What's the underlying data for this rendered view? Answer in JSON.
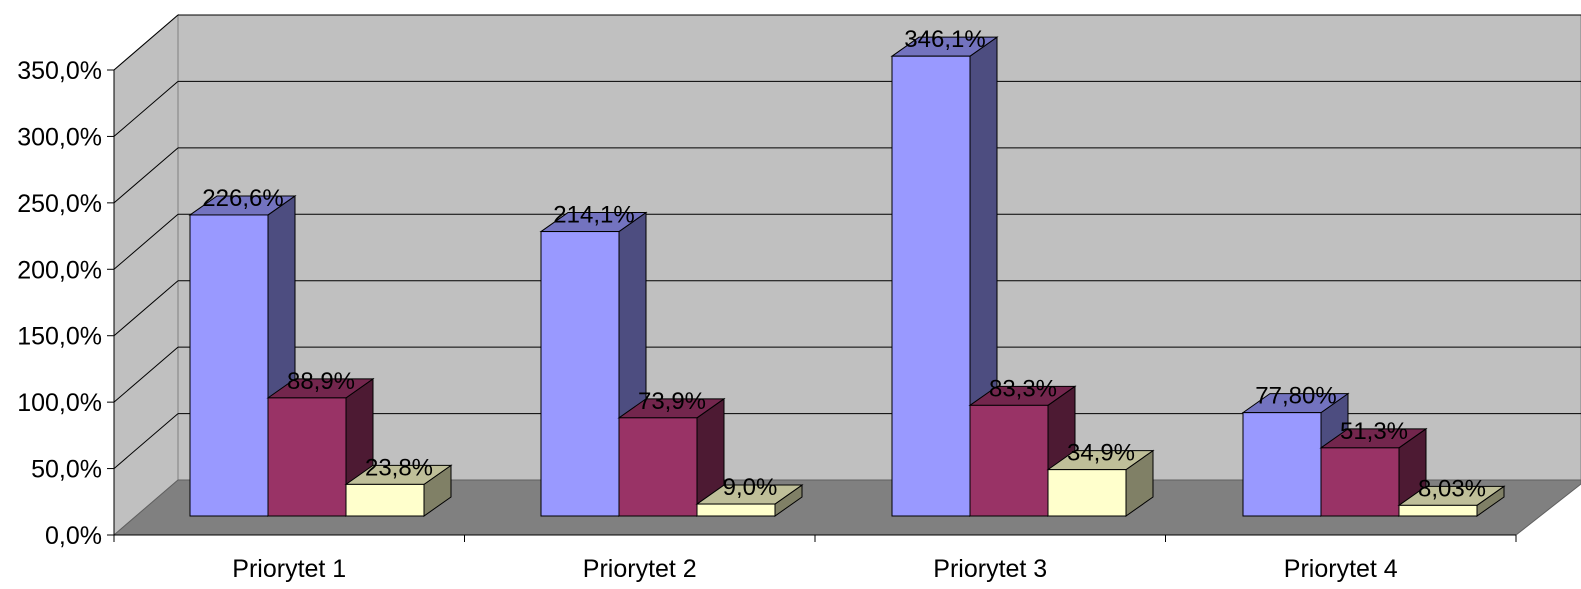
{
  "chart_data": {
    "type": "bar",
    "title": "",
    "xlabel": "",
    "ylabel": "",
    "categories": [
      "Priorytet 1",
      "Priorytet 2",
      "Priorytet 3",
      "Priorytet 4"
    ],
    "series": [
      {
        "color": "#9999ff",
        "values": [
          226.6,
          214.1,
          346.1,
          77.8
        ],
        "labels": [
          "226,6%",
          "214,1%",
          "346,1%",
          "77,80%"
        ]
      },
      {
        "color": "#993366",
        "values": [
          88.9,
          73.9,
          83.3,
          51.3
        ],
        "labels": [
          "88,9%",
          "73,9%",
          "83,3%",
          "51,3%"
        ]
      },
      {
        "color": "#ffffcc",
        "values": [
          23.8,
          9.0,
          34.9,
          8.03
        ],
        "labels": [
          "23,8%",
          "9,0%",
          "34,9%",
          "8,03%"
        ]
      }
    ],
    "ylim": [
      0,
      350
    ],
    "yticks": [
      {
        "value": 0,
        "label": "0,0%"
      },
      {
        "value": 50,
        "label": "50,0%"
      },
      {
        "value": 100,
        "label": "100,0%"
      },
      {
        "value": 150,
        "label": "150,0%"
      },
      {
        "value": 200,
        "label": "200,0%"
      },
      {
        "value": 250,
        "label": "250,0%"
      },
      {
        "value": 300,
        "label": "300,0%"
      },
      {
        "value": 350,
        "label": "350,0%"
      }
    ],
    "grid": true,
    "legend": "none",
    "style": "3d-clustered-column",
    "colors": {
      "wall": "#c0c0c0",
      "floor": "#808080",
      "gridline": "#000000"
    }
  }
}
